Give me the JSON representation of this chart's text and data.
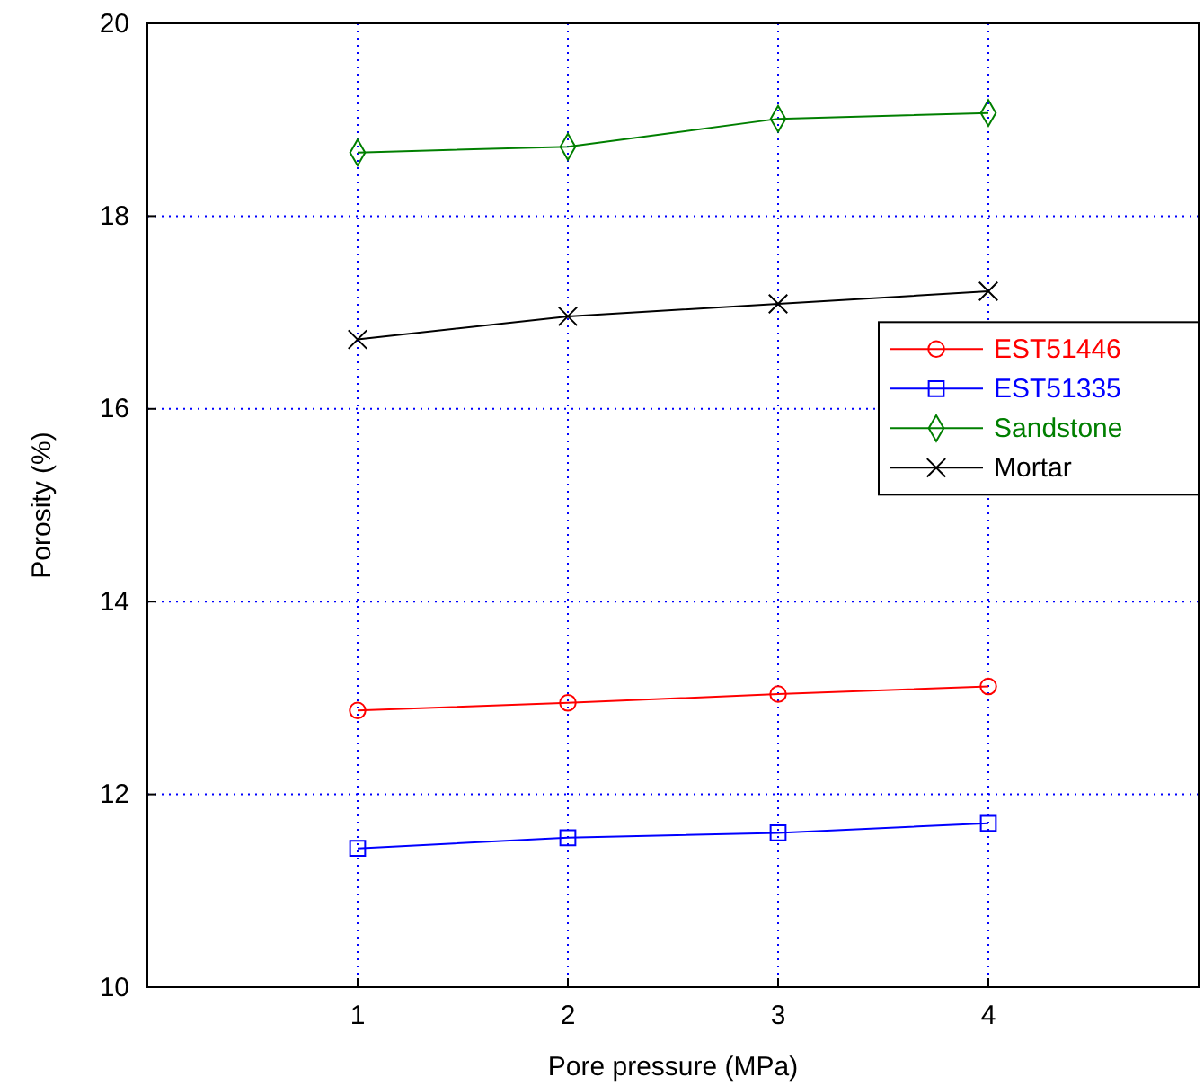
{
  "chart_data": {
    "type": "line",
    "xlabel": "Pore pressure (MPa)",
    "ylabel": "Porosity (%)",
    "x": [
      1,
      2,
      3,
      4
    ],
    "xlim": [
      0,
      5
    ],
    "xticks": [
      1,
      2,
      3,
      4
    ],
    "ylim": [
      10,
      20
    ],
    "yticks": [
      10,
      12,
      14,
      16,
      18,
      20
    ],
    "grid": true,
    "legend": "right",
    "series": [
      {
        "name": "EST51446",
        "color": "#ff0000",
        "marker": "circle",
        "values": [
          12.87,
          12.95,
          13.04,
          13.12
        ]
      },
      {
        "name": "EST51335",
        "color": "#0000ff",
        "marker": "square",
        "values": [
          11.44,
          11.55,
          11.6,
          11.7
        ]
      },
      {
        "name": "Sandstone",
        "color": "#007f00",
        "marker": "diamond",
        "values": [
          18.66,
          18.72,
          19.01,
          19.07
        ]
      },
      {
        "name": "Mortar",
        "color": "#000000",
        "marker": "cross",
        "values": [
          16.72,
          16.96,
          17.09,
          17.22
        ]
      }
    ]
  }
}
